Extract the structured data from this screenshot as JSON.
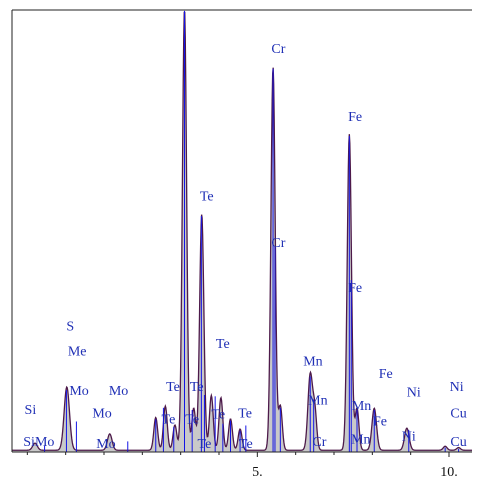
{
  "chart_data": {
    "type": "area",
    "title": "",
    "xlabel": "",
    "ylabel": "",
    "xlim": [
      -1.4,
      10.6
    ],
    "ylim": [
      0,
      100
    ],
    "x_ticks": [
      {
        "value": 5,
        "label": "5."
      },
      {
        "value": 10,
        "label": "10."
      }
    ],
    "series": [
      {
        "type": "spectrum",
        "fill": "#c9c9c9",
        "outline": "#4d1a4a",
        "baseline": 0.4,
        "peaks": [
          {
            "x": -0.8,
            "height": 1.6,
            "width": 0.06
          },
          {
            "x": 0.03,
            "height": 14.3,
            "width": 0.07
          },
          {
            "x": 1.15,
            "height": 3.7,
            "width": 0.06
          },
          {
            "x": 2.35,
            "height": 7.4,
            "width": 0.05
          },
          {
            "x": 2.6,
            "height": 10.0,
            "width": 0.05
          },
          {
            "x": 2.85,
            "height": 5.7,
            "width": 0.05
          },
          {
            "x": 3.1,
            "height": 99.8,
            "width": 0.055
          },
          {
            "x": 3.34,
            "height": 9.5,
            "width": 0.05
          },
          {
            "x": 3.55,
            "height": 53.4,
            "width": 0.055
          },
          {
            "x": 3.8,
            "height": 12.4,
            "width": 0.05
          },
          {
            "x": 4.05,
            "height": 11.9,
            "width": 0.05
          },
          {
            "x": 4.3,
            "height": 7.1,
            "width": 0.05
          },
          {
            "x": 4.55,
            "height": 4.8,
            "width": 0.05
          },
          {
            "x": 5.41,
            "height": 86.7,
            "width": 0.055
          },
          {
            "x": 5.6,
            "height": 10.0,
            "width": 0.05
          },
          {
            "x": 6.38,
            "height": 17.1,
            "width": 0.06
          },
          {
            "x": 6.5,
            "height": 8.5,
            "width": 0.05
          },
          {
            "x": 7.4,
            "height": 71.5,
            "width": 0.055
          },
          {
            "x": 7.6,
            "height": 9.5,
            "width": 0.05
          },
          {
            "x": 8.05,
            "height": 9.5,
            "width": 0.06
          },
          {
            "x": 8.9,
            "height": 5.0,
            "width": 0.06
          },
          {
            "x": 9.9,
            "height": 0.9,
            "width": 0.05
          },
          {
            "x": 10.25,
            "height": 0.6,
            "width": 0.05
          }
        ]
      },
      {
        "type": "markers",
        "stroke": "#1414e6",
        "lines": [
          {
            "x": 0.02,
            "height": 14.0
          },
          {
            "x": -0.55,
            "height": 1.5
          },
          {
            "x": 0.28,
            "height": 6.9
          },
          {
            "x": 1.62,
            "height": 2.4
          },
          {
            "x": 2.35,
            "height": 7.4
          },
          {
            "x": 2.55,
            "height": 10.0
          },
          {
            "x": 2.82,
            "height": 5.7
          },
          {
            "x": 3.1,
            "height": 99.8
          },
          {
            "x": 3.3,
            "height": 9.5
          },
          {
            "x": 3.54,
            "height": 53.4
          },
          {
            "x": 3.62,
            "height": 12.9
          },
          {
            "x": 3.9,
            "height": 12.6
          },
          {
            "x": 4.1,
            "height": 6.4
          },
          {
            "x": 4.3,
            "height": 7.1
          },
          {
            "x": 4.55,
            "height": 4.8
          },
          {
            "x": 4.7,
            "height": 6.0
          },
          {
            "x": 5.41,
            "height": 86.7
          },
          {
            "x": 5.46,
            "height": 46.4
          },
          {
            "x": 5.6,
            "height": 10.0
          },
          {
            "x": 6.38,
            "height": 17.1
          },
          {
            "x": 6.47,
            "height": 11.9
          },
          {
            "x": 7.4,
            "height": 71.5
          },
          {
            "x": 7.45,
            "height": 38.9
          },
          {
            "x": 7.6,
            "height": 9.5
          },
          {
            "x": 8.05,
            "height": 9.5
          },
          {
            "x": 8.95,
            "height": 5.0
          },
          {
            "x": 9.9,
            "height": 1.0
          },
          {
            "x": 10.25,
            "height": 0.7
          }
        ]
      }
    ],
    "peak_labels": [
      {
        "text": "Te",
        "x": 3.22,
        "y": 103.3
      },
      {
        "text": "Cr",
        "x": 5.55,
        "y": 90.3
      },
      {
        "text": "Fe",
        "x": 7.55,
        "y": 74.9
      },
      {
        "text": "Te",
        "x": 3.68,
        "y": 56.9
      },
      {
        "text": "Cr",
        "x": 5.55,
        "y": 46.4
      },
      {
        "text": "Fe",
        "x": 7.55,
        "y": 36.2
      },
      {
        "text": "S",
        "x": 0.12,
        "y": 27.5
      },
      {
        "text": "Me",
        "x": 0.3,
        "y": 21.8
      },
      {
        "text": "Te",
        "x": 4.1,
        "y": 23.5
      },
      {
        "text": "Mn",
        "x": 6.45,
        "y": 19.6
      },
      {
        "text": "Mo",
        "x": 0.35,
        "y": 12.9
      },
      {
        "text": "Mo",
        "x": 1.38,
        "y": 12.9
      },
      {
        "text": "Te",
        "x": 2.8,
        "y": 13.8
      },
      {
        "text": "Te",
        "x": 3.42,
        "y": 13.8
      },
      {
        "text": "Fe",
        "x": 8.35,
        "y": 16.7
      },
      {
        "text": "Ni",
        "x": 9.08,
        "y": 12.6
      },
      {
        "text": "Ni",
        "x": 10.2,
        "y": 13.8
      },
      {
        "text": "Cu",
        "x": 11.2,
        "y": 13.8
      },
      {
        "text": "Mn",
        "x": 6.58,
        "y": 10.7
      },
      {
        "text": "Mn",
        "x": 7.72,
        "y": 9.5
      },
      {
        "text": "Si",
        "x": -0.92,
        "y": 8.6
      },
      {
        "text": "Mo",
        "x": 0.95,
        "y": 7.8
      },
      {
        "text": "Te",
        "x": 2.68,
        "y": 6.4
      },
      {
        "text": "Te",
        "x": 3.3,
        "y": 6.4
      },
      {
        "text": "Te",
        "x": 3.98,
        "y": 7.6
      },
      {
        "text": "Te",
        "x": 4.68,
        "y": 7.8
      },
      {
        "text": "Fe",
        "x": 8.2,
        "y": 6.0
      },
      {
        "text": "Cu",
        "x": 10.25,
        "y": 7.8
      },
      {
        "text": "Cu",
        "x": 11.2,
        "y": 7.8
      },
      {
        "text": "SiMo",
        "x": -0.7,
        "y": 1.4
      },
      {
        "text": "Mo",
        "x": 1.05,
        "y": 0.9
      },
      {
        "text": "Te",
        "x": 3.62,
        "y": 0.9
      },
      {
        "text": "Te",
        "x": 4.7,
        "y": 0.9
      },
      {
        "text": "Cr",
        "x": 6.62,
        "y": 1.4
      },
      {
        "text": "Mn",
        "x": 7.7,
        "y": 1.9
      },
      {
        "text": "Ni",
        "x": 8.95,
        "y": 2.6
      },
      {
        "text": "Cu",
        "x": 10.25,
        "y": 1.4
      },
      {
        "text": "Cu",
        "x": 11.2,
        "y": 1.4
      }
    ]
  }
}
